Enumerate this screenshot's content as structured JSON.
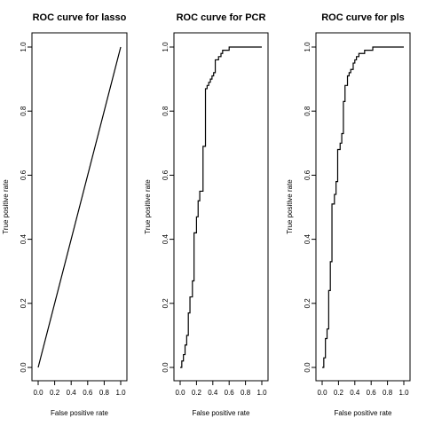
{
  "chart_data": [
    {
      "type": "line",
      "title": "ROC curve for lasso",
      "xlabel": "False positive rate",
      "ylabel": "True positive rate",
      "xlim": [
        0,
        1
      ],
      "ylim": [
        0,
        1
      ],
      "xticks": [
        "0.0",
        "0.2",
        "0.4",
        "0.6",
        "0.8",
        "1.0"
      ],
      "yticks": [
        "0.0",
        "0.2",
        "0.4",
        "0.6",
        "0.8",
        "1.0"
      ],
      "grid": false,
      "series": [
        {
          "x": [
            0,
            1
          ],
          "y": [
            0,
            1
          ]
        }
      ]
    },
    {
      "type": "line",
      "title": "ROC curve for PCR",
      "xlabel": "False positive rate",
      "ylabel": "True positive rate",
      "xlim": [
        0,
        1
      ],
      "ylim": [
        0,
        1
      ],
      "xticks": [
        "0.0",
        "0.2",
        "0.4",
        "0.6",
        "0.8",
        "1.0"
      ],
      "yticks": [
        "0.0",
        "0.2",
        "0.4",
        "0.6",
        "0.8",
        "1.0"
      ],
      "grid": false,
      "series": [
        {
          "x": [
            0,
            0.02,
            0.02,
            0.04,
            0.04,
            0.06,
            0.06,
            0.08,
            0.08,
            0.1,
            0.1,
            0.12,
            0.12,
            0.15,
            0.15,
            0.17,
            0.17,
            0.2,
            0.2,
            0.22,
            0.22,
            0.24,
            0.24,
            0.28,
            0.28,
            0.31,
            0.31,
            0.33,
            0.33,
            0.35,
            0.35,
            0.37,
            0.37,
            0.39,
            0.39,
            0.41,
            0.41,
            0.43,
            0.43,
            0.47,
            0.47,
            0.5,
            0.5,
            0.52,
            0.52,
            0.56,
            0.56,
            0.6,
            0.6,
            0.64,
            0.64,
            0.7,
            0.7,
            0.8,
            0.8,
            1.0
          ],
          "y": [
            0,
            0,
            0.02,
            0.02,
            0.04,
            0.04,
            0.07,
            0.07,
            0.1,
            0.1,
            0.17,
            0.17,
            0.22,
            0.22,
            0.27,
            0.27,
            0.42,
            0.42,
            0.47,
            0.47,
            0.52,
            0.52,
            0.55,
            0.55,
            0.69,
            0.69,
            0.87,
            0.87,
            0.88,
            0.88,
            0.89,
            0.89,
            0.9,
            0.9,
            0.91,
            0.91,
            0.92,
            0.92,
            0.96,
            0.96,
            0.97,
            0.97,
            0.98,
            0.98,
            0.99,
            0.99,
            0.99,
            0.99,
            1.0,
            1.0,
            1.0,
            1.0,
            1.0,
            1.0,
            1.0,
            1.0
          ]
        }
      ]
    },
    {
      "type": "line",
      "title": "ROC curve for pls",
      "xlabel": "False positive rate",
      "ylabel": "True positive rate",
      "xlim": [
        0,
        1
      ],
      "ylim": [
        0,
        1
      ],
      "xticks": [
        "0.0",
        "0.2",
        "0.4",
        "0.6",
        "0.8",
        "1.0"
      ],
      "yticks": [
        "0.0",
        "0.2",
        "0.4",
        "0.6",
        "0.8",
        "1.0"
      ],
      "grid": false,
      "series": [
        {
          "x": [
            0,
            0.02,
            0.02,
            0.04,
            0.04,
            0.06,
            0.06,
            0.08,
            0.08,
            0.1,
            0.1,
            0.12,
            0.12,
            0.15,
            0.15,
            0.17,
            0.17,
            0.19,
            0.19,
            0.22,
            0.22,
            0.24,
            0.24,
            0.26,
            0.26,
            0.28,
            0.28,
            0.31,
            0.31,
            0.33,
            0.33,
            0.35,
            0.35,
            0.38,
            0.38,
            0.4,
            0.4,
            0.42,
            0.42,
            0.45,
            0.45,
            0.48,
            0.48,
            0.52,
            0.52,
            0.56,
            0.56,
            0.62,
            0.62,
            0.7,
            0.7,
            0.76,
            0.76,
            1.0
          ],
          "y": [
            0,
            0,
            0.03,
            0.03,
            0.09,
            0.09,
            0.12,
            0.12,
            0.24,
            0.24,
            0.33,
            0.33,
            0.51,
            0.51,
            0.54,
            0.54,
            0.58,
            0.58,
            0.68,
            0.68,
            0.7,
            0.7,
            0.73,
            0.73,
            0.83,
            0.83,
            0.88,
            0.88,
            0.91,
            0.91,
            0.92,
            0.92,
            0.93,
            0.93,
            0.95,
            0.95,
            0.96,
            0.96,
            0.97,
            0.97,
            0.98,
            0.98,
            0.98,
            0.98,
            0.99,
            0.99,
            0.99,
            0.99,
            1.0,
            1.0,
            1.0,
            1.0,
            1.0,
            1.0
          ]
        }
      ]
    }
  ]
}
